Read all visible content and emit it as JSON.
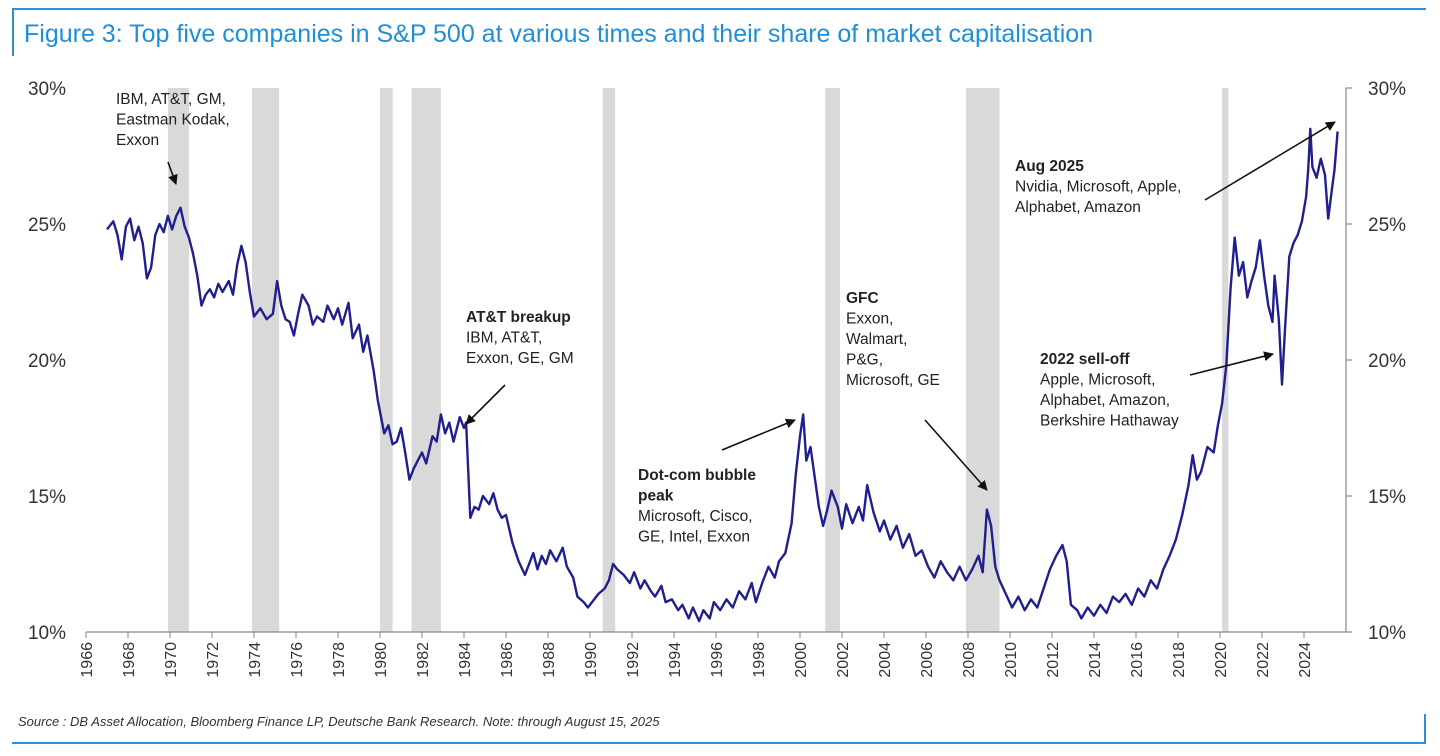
{
  "page": {
    "title": "Figure 3: Top five companies in S&P 500 at various times and their share of market capitalisation",
    "source": "Source : DB Asset Allocation, Bloomberg Finance LP, Deutsche Bank Research. Note: through August 15, 2025"
  },
  "colors": {
    "line": "#1f1f8f",
    "shade": "#d9d9d9",
    "title": "#1f8fd8",
    "axis": "#888888"
  },
  "chart_data": {
    "type": "line",
    "xlim": [
      1966,
      2026
    ],
    "ylim": [
      10,
      30
    ],
    "y_ticks": [
      10,
      15,
      20,
      25,
      30
    ],
    "y_tick_labels": [
      "10%",
      "15%",
      "20%",
      "25%",
      "30%"
    ],
    "x_ticks": [
      1966,
      1968,
      1970,
      1972,
      1974,
      1976,
      1978,
      1980,
      1982,
      1984,
      1986,
      1988,
      1990,
      1992,
      1994,
      1996,
      1998,
      2000,
      2002,
      2004,
      2006,
      2008,
      2010,
      2012,
      2014,
      2016,
      2018,
      2020,
      2022,
      2024
    ],
    "recessions": [
      [
        1969.9,
        1970.9
      ],
      [
        1973.9,
        1975.2
      ],
      [
        1980.0,
        1980.6
      ],
      [
        1981.5,
        1982.9
      ],
      [
        1990.6,
        1991.2
      ],
      [
        2001.2,
        2001.9
      ],
      [
        2007.9,
        2009.5
      ],
      [
        2020.1,
        2020.4
      ]
    ],
    "series": [
      {
        "points": [
          [
            1967.0,
            24.8
          ],
          [
            1967.3,
            25.1
          ],
          [
            1967.5,
            24.6
          ],
          [
            1967.7,
            23.7
          ],
          [
            1967.9,
            24.9
          ],
          [
            1968.1,
            25.2
          ],
          [
            1968.3,
            24.4
          ],
          [
            1968.5,
            24.9
          ],
          [
            1968.7,
            24.3
          ],
          [
            1968.9,
            23.0
          ],
          [
            1969.1,
            23.4
          ],
          [
            1969.3,
            24.6
          ],
          [
            1969.5,
            25.0
          ],
          [
            1969.7,
            24.7
          ],
          [
            1969.9,
            25.3
          ],
          [
            1970.1,
            24.8
          ],
          [
            1970.3,
            25.3
          ],
          [
            1970.5,
            25.6
          ],
          [
            1970.7,
            24.9
          ],
          [
            1970.9,
            24.5
          ],
          [
            1971.1,
            23.9
          ],
          [
            1971.3,
            23.1
          ],
          [
            1971.5,
            22.0
          ],
          [
            1971.7,
            22.4
          ],
          [
            1971.9,
            22.6
          ],
          [
            1972.1,
            22.3
          ],
          [
            1972.3,
            22.8
          ],
          [
            1972.5,
            22.5
          ],
          [
            1972.8,
            22.9
          ],
          [
            1973.0,
            22.4
          ],
          [
            1973.2,
            23.5
          ],
          [
            1973.4,
            24.2
          ],
          [
            1973.6,
            23.6
          ],
          [
            1973.8,
            22.5
          ],
          [
            1974.0,
            21.6
          ],
          [
            1974.3,
            21.9
          ],
          [
            1974.6,
            21.5
          ],
          [
            1974.9,
            21.7
          ],
          [
            1975.1,
            22.9
          ],
          [
            1975.3,
            22.0
          ],
          [
            1975.5,
            21.5
          ],
          [
            1975.7,
            21.4
          ],
          [
            1975.9,
            20.9
          ],
          [
            1976.1,
            21.7
          ],
          [
            1976.3,
            22.4
          ],
          [
            1976.6,
            22.0
          ],
          [
            1976.8,
            21.3
          ],
          [
            1977.0,
            21.6
          ],
          [
            1977.3,
            21.4
          ],
          [
            1977.5,
            22.0
          ],
          [
            1977.8,
            21.5
          ],
          [
            1978.0,
            21.9
          ],
          [
            1978.2,
            21.3
          ],
          [
            1978.5,
            22.1
          ],
          [
            1978.7,
            20.8
          ],
          [
            1979.0,
            21.3
          ],
          [
            1979.2,
            20.3
          ],
          [
            1979.4,
            20.9
          ],
          [
            1979.7,
            19.6
          ],
          [
            1979.9,
            18.5
          ],
          [
            1980.2,
            17.3
          ],
          [
            1980.4,
            17.6
          ],
          [
            1980.6,
            16.9
          ],
          [
            1980.8,
            17.0
          ],
          [
            1981.0,
            17.5
          ],
          [
            1981.2,
            16.6
          ],
          [
            1981.4,
            15.6
          ],
          [
            1981.6,
            16.0
          ],
          [
            1981.8,
            16.3
          ],
          [
            1982.0,
            16.6
          ],
          [
            1982.2,
            16.2
          ],
          [
            1982.5,
            17.2
          ],
          [
            1982.7,
            17.0
          ],
          [
            1982.9,
            18.0
          ],
          [
            1983.1,
            17.3
          ],
          [
            1983.3,
            17.7
          ],
          [
            1983.5,
            17.0
          ],
          [
            1983.8,
            17.9
          ],
          [
            1984.0,
            17.5
          ],
          [
            1984.1,
            17.7
          ],
          [
            1984.3,
            14.2
          ],
          [
            1984.5,
            14.6
          ],
          [
            1984.7,
            14.5
          ],
          [
            1984.9,
            15.0
          ],
          [
            1985.2,
            14.7
          ],
          [
            1985.4,
            15.1
          ],
          [
            1985.6,
            14.5
          ],
          [
            1985.8,
            14.2
          ],
          [
            1986.0,
            14.3
          ],
          [
            1986.3,
            13.3
          ],
          [
            1986.6,
            12.6
          ],
          [
            1986.9,
            12.1
          ],
          [
            1987.1,
            12.5
          ],
          [
            1987.3,
            12.9
          ],
          [
            1987.5,
            12.3
          ],
          [
            1987.7,
            12.8
          ],
          [
            1987.9,
            12.5
          ],
          [
            1988.1,
            13.0
          ],
          [
            1988.4,
            12.6
          ],
          [
            1988.7,
            13.1
          ],
          [
            1988.9,
            12.4
          ],
          [
            1989.2,
            12.0
          ],
          [
            1989.4,
            11.3
          ],
          [
            1989.7,
            11.1
          ],
          [
            1989.9,
            10.9
          ],
          [
            1990.2,
            11.2
          ],
          [
            1990.4,
            11.4
          ],
          [
            1990.7,
            11.6
          ],
          [
            1990.9,
            11.9
          ],
          [
            1991.1,
            12.5
          ],
          [
            1991.3,
            12.3
          ],
          [
            1991.6,
            12.1
          ],
          [
            1991.9,
            11.8
          ],
          [
            1992.1,
            12.2
          ],
          [
            1992.4,
            11.6
          ],
          [
            1992.6,
            11.9
          ],
          [
            1992.9,
            11.5
          ],
          [
            1993.1,
            11.3
          ],
          [
            1993.4,
            11.7
          ],
          [
            1993.6,
            11.1
          ],
          [
            1993.9,
            11.2
          ],
          [
            1994.2,
            10.8
          ],
          [
            1994.4,
            11.0
          ],
          [
            1994.7,
            10.5
          ],
          [
            1994.9,
            10.9
          ],
          [
            1995.2,
            10.4
          ],
          [
            1995.4,
            10.8
          ],
          [
            1995.7,
            10.5
          ],
          [
            1995.9,
            11.1
          ],
          [
            1996.2,
            10.8
          ],
          [
            1996.5,
            11.2
          ],
          [
            1996.8,
            10.9
          ],
          [
            1997.1,
            11.5
          ],
          [
            1997.4,
            11.2
          ],
          [
            1997.7,
            11.8
          ],
          [
            1997.9,
            11.1
          ],
          [
            1998.2,
            11.8
          ],
          [
            1998.5,
            12.4
          ],
          [
            1998.8,
            12.0
          ],
          [
            1999.0,
            12.6
          ],
          [
            1999.3,
            12.9
          ],
          [
            1999.6,
            14.0
          ],
          [
            1999.8,
            15.8
          ],
          [
            2000.0,
            17.2
          ],
          [
            2000.15,
            18.0
          ],
          [
            2000.3,
            16.3
          ],
          [
            2000.5,
            16.8
          ],
          [
            2000.7,
            15.7
          ],
          [
            2000.9,
            14.6
          ],
          [
            2001.1,
            13.9
          ],
          [
            2001.3,
            14.5
          ],
          [
            2001.5,
            15.2
          ],
          [
            2001.8,
            14.6
          ],
          [
            2002.0,
            13.8
          ],
          [
            2002.2,
            14.7
          ],
          [
            2002.5,
            14.0
          ],
          [
            2002.8,
            14.6
          ],
          [
            2003.0,
            14.1
          ],
          [
            2003.2,
            15.4
          ],
          [
            2003.5,
            14.4
          ],
          [
            2003.8,
            13.7
          ],
          [
            2004.0,
            14.1
          ],
          [
            2004.3,
            13.4
          ],
          [
            2004.6,
            13.9
          ],
          [
            2004.9,
            13.1
          ],
          [
            2005.2,
            13.6
          ],
          [
            2005.5,
            12.8
          ],
          [
            2005.8,
            13.0
          ],
          [
            2006.1,
            12.4
          ],
          [
            2006.4,
            12.0
          ],
          [
            2006.7,
            12.6
          ],
          [
            2007.0,
            12.2
          ],
          [
            2007.3,
            11.9
          ],
          [
            2007.6,
            12.4
          ],
          [
            2007.9,
            11.9
          ],
          [
            2008.2,
            12.3
          ],
          [
            2008.5,
            12.8
          ],
          [
            2008.7,
            12.2
          ],
          [
            2008.9,
            14.5
          ],
          [
            2009.1,
            13.9
          ],
          [
            2009.3,
            12.4
          ],
          [
            2009.5,
            11.9
          ],
          [
            2009.8,
            11.4
          ],
          [
            2010.1,
            10.9
          ],
          [
            2010.4,
            11.3
          ],
          [
            2010.7,
            10.8
          ],
          [
            2011.0,
            11.2
          ],
          [
            2011.3,
            10.9
          ],
          [
            2011.6,
            11.6
          ],
          [
            2011.9,
            12.3
          ],
          [
            2012.2,
            12.8
          ],
          [
            2012.5,
            13.2
          ],
          [
            2012.7,
            12.6
          ],
          [
            2012.9,
            11.0
          ],
          [
            2013.2,
            10.8
          ],
          [
            2013.4,
            10.5
          ],
          [
            2013.7,
            10.9
          ],
          [
            2014.0,
            10.6
          ],
          [
            2014.3,
            11.0
          ],
          [
            2014.6,
            10.7
          ],
          [
            2014.9,
            11.3
          ],
          [
            2015.2,
            11.1
          ],
          [
            2015.5,
            11.4
          ],
          [
            2015.8,
            11.0
          ],
          [
            2016.1,
            11.6
          ],
          [
            2016.4,
            11.3
          ],
          [
            2016.7,
            11.9
          ],
          [
            2017.0,
            11.6
          ],
          [
            2017.3,
            12.3
          ],
          [
            2017.6,
            12.8
          ],
          [
            2017.9,
            13.4
          ],
          [
            2018.2,
            14.3
          ],
          [
            2018.5,
            15.4
          ],
          [
            2018.7,
            16.5
          ],
          [
            2018.9,
            15.6
          ],
          [
            2019.1,
            15.9
          ],
          [
            2019.4,
            16.8
          ],
          [
            2019.7,
            16.6
          ],
          [
            2019.9,
            17.6
          ],
          [
            2020.1,
            18.4
          ],
          [
            2020.3,
            19.8
          ],
          [
            2020.5,
            22.6
          ],
          [
            2020.7,
            24.5
          ],
          [
            2020.9,
            23.1
          ],
          [
            2021.1,
            23.6
          ],
          [
            2021.3,
            22.3
          ],
          [
            2021.5,
            22.9
          ],
          [
            2021.7,
            23.4
          ],
          [
            2021.9,
            24.4
          ],
          [
            2022.1,
            23.1
          ],
          [
            2022.3,
            22.0
          ],
          [
            2022.5,
            21.4
          ],
          [
            2022.6,
            23.1
          ],
          [
            2022.8,
            21.5
          ],
          [
            2022.95,
            19.1
          ],
          [
            2023.1,
            21.2
          ],
          [
            2023.3,
            23.8
          ],
          [
            2023.5,
            24.3
          ],
          [
            2023.7,
            24.6
          ],
          [
            2023.9,
            25.1
          ],
          [
            2024.1,
            26.0
          ],
          [
            2024.2,
            27.0
          ],
          [
            2024.3,
            28.5
          ],
          [
            2024.4,
            27.1
          ],
          [
            2024.6,
            26.7
          ],
          [
            2024.8,
            27.4
          ],
          [
            2025.0,
            26.8
          ],
          [
            2025.15,
            25.2
          ],
          [
            2025.3,
            26.1
          ],
          [
            2025.45,
            27.0
          ],
          [
            2025.6,
            28.4
          ]
        ]
      }
    ],
    "annotations": [
      {
        "lines": [
          "IBM, AT&T, GM,",
          "Eastman Kodak,",
          "Exxon"
        ],
        "bold_lines": 0
      },
      {
        "lines": [
          "AT&T breakup",
          "IBM, AT&T,",
          "Exxon, GE, GM"
        ],
        "bold_lines": 1
      },
      {
        "lines": [
          "Dot-com bubble",
          "peak",
          "Microsoft, Cisco,",
          "GE, Intel, Exxon"
        ],
        "bold_lines": 2
      },
      {
        "lines": [
          "GFC",
          "Exxon,",
          "Walmart,",
          "P&G,",
          "Microsoft, GE"
        ],
        "bold_lines": 1
      },
      {
        "lines": [
          "2022 sell-off",
          "Apple, Microsoft,",
          "Alphabet, Amazon,",
          "Berkshire Hathaway"
        ],
        "bold_lines": 1
      },
      {
        "lines": [
          "Aug 2025",
          "Nvidia, Microsoft, Apple,",
          "Alphabet, Amazon"
        ],
        "bold_lines": 1
      }
    ]
  }
}
